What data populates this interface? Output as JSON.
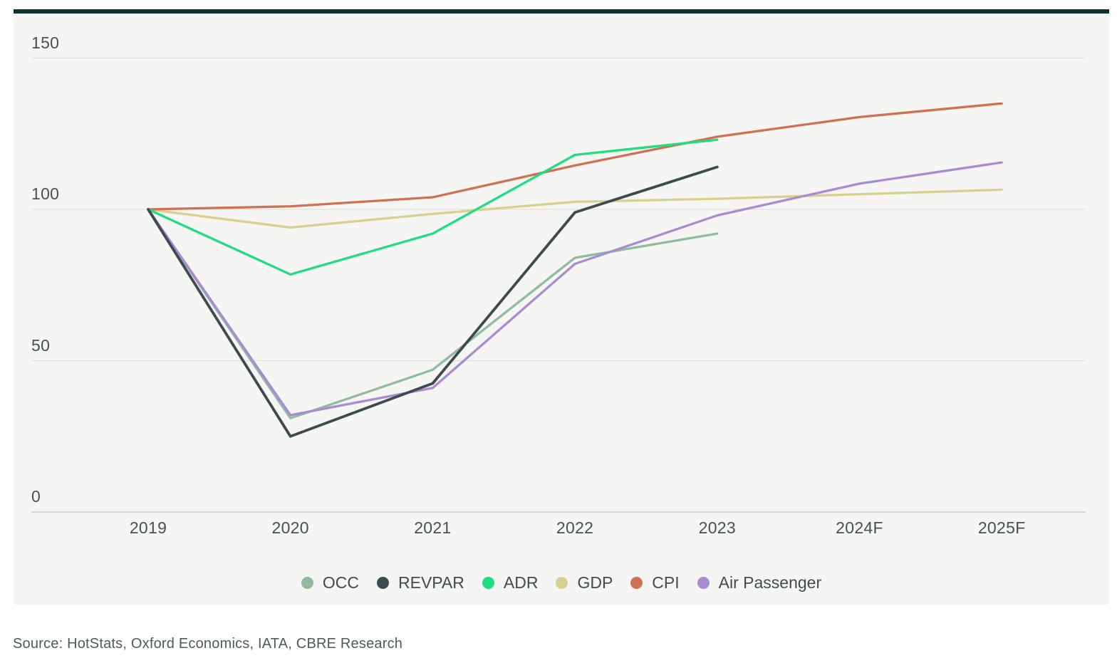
{
  "page": {
    "background": "#ffffff",
    "accent_bar_color": "#0c3233",
    "panel_background": "#f5f5f3"
  },
  "axis": {
    "tick_label_color": "#46534f",
    "grid_color": "#e4e4e2",
    "zero_line_color": "#d5d5d3"
  },
  "legend": {
    "text_color": "#3f4d4c"
  },
  "source": {
    "text": "Source: HotStats, Oxford Economics, IATA, CBRE Research",
    "color": "#4d5b59"
  },
  "chart_data": {
    "type": "line",
    "title": "",
    "categories": [
      "2019",
      "2020",
      "2021",
      "2022",
      "2023",
      "2024F",
      "2025F"
    ],
    "yticks": [
      0,
      50,
      100,
      150
    ],
    "ylim": [
      0,
      165
    ],
    "grid": "horizontal",
    "legend_position": "bottom",
    "series": [
      {
        "name": "OCC",
        "color": "#8fbc9e",
        "values": [
          100,
          31,
          47,
          84,
          92,
          null,
          null
        ]
      },
      {
        "name": "REVPAR",
        "color": "#3c4b4d",
        "values": [
          100,
          25,
          42.5,
          99,
          114,
          null,
          null
        ]
      },
      {
        "name": "ADR",
        "color": "#22dc82",
        "values": [
          100,
          78.5,
          92,
          118,
          123,
          null,
          null
        ]
      },
      {
        "name": "GDP",
        "color": "#d8d08f",
        "values": [
          100,
          94,
          98.5,
          102.5,
          103.5,
          105,
          106.5
        ]
      },
      {
        "name": "CPI",
        "color": "#cd7253",
        "values": [
          100,
          101,
          104,
          114.5,
          124,
          130.5,
          135
        ]
      },
      {
        "name": "Air Passenger",
        "color": "#a98bd1",
        "values": [
          100,
          32,
          41,
          82,
          98,
          108.5,
          115.5
        ]
      }
    ],
    "legend_order": [
      "OCC",
      "REVPAR",
      "ADR",
      "GDP",
      "CPI",
      "Air Passenger"
    ],
    "draw_order": [
      "GDP",
      "CPI",
      "ADR",
      "OCC",
      "Air Passenger",
      "REVPAR"
    ]
  }
}
